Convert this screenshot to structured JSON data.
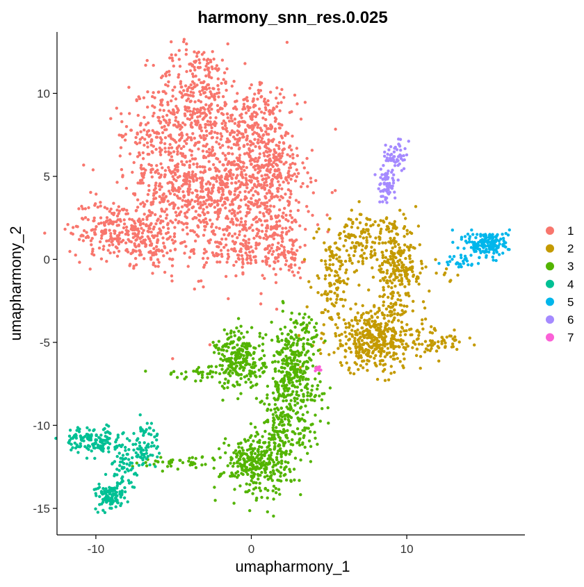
{
  "chart_data": {
    "type": "scatter",
    "title": "harmony_snn_res.0.025",
    "xlabel": "umapharmony_1",
    "ylabel": "umapharmony_2",
    "xlim": [
      -12.5,
      17.6
    ],
    "ylim": [
      -16.6,
      13.7
    ],
    "xticks": [
      -10,
      0,
      10
    ],
    "yticks": [
      -15,
      -10,
      -5,
      0,
      5,
      10
    ],
    "legend_position": "right",
    "series": [
      {
        "name": "1",
        "color": "#F8766D",
        "blobs": [
          {
            "cx": -1.5,
            "cy": 4.5,
            "sx": 2.3,
            "sy": 2.5,
            "n": 900
          },
          {
            "cx": -3.5,
            "cy": 10.0,
            "sx": 1.4,
            "sy": 1.5,
            "n": 300
          },
          {
            "cx": -6.0,
            "cy": 7.5,
            "sx": 1.3,
            "sy": 1.0,
            "n": 120
          },
          {
            "cx": -5.0,
            "cy": 4.5,
            "sx": 1.5,
            "sy": 1.5,
            "n": 200
          },
          {
            "cx": -8.5,
            "cy": 1.8,
            "sx": 1.6,
            "sy": 0.9,
            "n": 260
          },
          {
            "cx": -6.5,
            "cy": 0.8,
            "sx": 1.0,
            "sy": 0.7,
            "n": 80
          },
          {
            "cx": 0.5,
            "cy": 8.5,
            "sx": 0.8,
            "sy": 1.2,
            "n": 120
          },
          {
            "cx": 1.5,
            "cy": 1.5,
            "sx": 1.0,
            "sy": 1.0,
            "n": 120
          },
          {
            "cx": 1.5,
            "cy": 5.5,
            "sx": 0.9,
            "sy": 1.0,
            "n": 140
          },
          {
            "cx": 2.5,
            "cy": 0.0,
            "sx": 0.6,
            "sy": 0.6,
            "n": 40
          },
          {
            "cx": -1.0,
            "cy": 0.5,
            "sx": 1.0,
            "sy": 0.6,
            "n": 60
          }
        ]
      },
      {
        "name": "2",
        "color": "#C49A00",
        "blobs": [
          {
            "cx": 8.0,
            "cy": -4.8,
            "sx": 1.6,
            "sy": 1.0,
            "n": 420
          },
          {
            "cx": 9.3,
            "cy": -0.5,
            "sx": 0.7,
            "sy": 1.3,
            "n": 220
          },
          {
            "cx": 6.6,
            "cy": 0.8,
            "sx": 0.9,
            "sy": 0.9,
            "n": 110
          },
          {
            "cx": 5.2,
            "cy": -1.5,
            "sx": 0.6,
            "sy": 1.2,
            "n": 90
          },
          {
            "cx": 12.0,
            "cy": -5.0,
            "sx": 0.9,
            "sy": 0.3,
            "n": 50
          },
          {
            "cx": 10.5,
            "cy": -0.8,
            "sx": 1.2,
            "sy": 0.4,
            "n": 40
          },
          {
            "cx": 8.0,
            "cy": 1.8,
            "sx": 0.7,
            "sy": 0.5,
            "n": 30
          }
        ]
      },
      {
        "name": "3",
        "color": "#53B400",
        "blobs": [
          {
            "cx": 0.3,
            "cy": -12.3,
            "sx": 1.1,
            "sy": 0.9,
            "n": 300
          },
          {
            "cx": -0.7,
            "cy": -6.0,
            "sx": 0.8,
            "sy": 0.9,
            "n": 240
          },
          {
            "cx": 2.4,
            "cy": -7.5,
            "sx": 0.6,
            "sy": 1.8,
            "n": 260
          },
          {
            "cx": 3.3,
            "cy": -5.5,
            "sx": 0.6,
            "sy": 1.2,
            "n": 100
          },
          {
            "cx": 1.6,
            "cy": -10.3,
            "sx": 0.5,
            "sy": 1.2,
            "n": 100
          },
          {
            "cx": -3.0,
            "cy": -6.8,
            "sx": 1.3,
            "sy": 0.2,
            "n": 40
          },
          {
            "cx": -4.5,
            "cy": -12.2,
            "sx": 1.4,
            "sy": 0.2,
            "n": 40
          },
          {
            "cx": 3.5,
            "cy": -10.5,
            "sx": 0.5,
            "sy": 0.6,
            "n": 30
          },
          {
            "cx": 4.0,
            "cy": -8.5,
            "sx": 0.5,
            "sy": 0.5,
            "n": 30
          }
        ]
      },
      {
        "name": "4",
        "color": "#00C094",
        "blobs": [
          {
            "cx": -10.2,
            "cy": -10.9,
            "sx": 0.9,
            "sy": 0.4,
            "n": 140
          },
          {
            "cx": -9.0,
            "cy": -14.3,
            "sx": 0.5,
            "sy": 0.4,
            "n": 110
          },
          {
            "cx": -7.3,
            "cy": -11.6,
            "sx": 0.6,
            "sy": 0.5,
            "n": 70
          },
          {
            "cx": -8.2,
            "cy": -12.8,
            "sx": 0.4,
            "sy": 0.7,
            "n": 40
          },
          {
            "cx": -6.6,
            "cy": -10.3,
            "sx": 0.3,
            "sy": 0.4,
            "n": 20
          }
        ]
      },
      {
        "name": "5",
        "color": "#00B6EB",
        "blobs": [
          {
            "cx": 15.2,
            "cy": 0.9,
            "sx": 0.7,
            "sy": 0.4,
            "n": 180
          },
          {
            "cx": 13.5,
            "cy": -0.2,
            "sx": 0.5,
            "sy": 0.2,
            "n": 25
          }
        ]
      },
      {
        "name": "6",
        "color": "#A58AFF",
        "blobs": [
          {
            "cx": 8.7,
            "cy": 4.6,
            "sx": 0.3,
            "sy": 0.6,
            "n": 70
          },
          {
            "cx": 9.3,
            "cy": 6.2,
            "sx": 0.3,
            "sy": 0.5,
            "n": 50
          }
        ]
      },
      {
        "name": "7",
        "color": "#FB61D7",
        "blobs": [
          {
            "cx": 4.3,
            "cy": -6.6,
            "sx": 0.1,
            "sy": 0.07,
            "n": 14
          }
        ]
      }
    ]
  }
}
